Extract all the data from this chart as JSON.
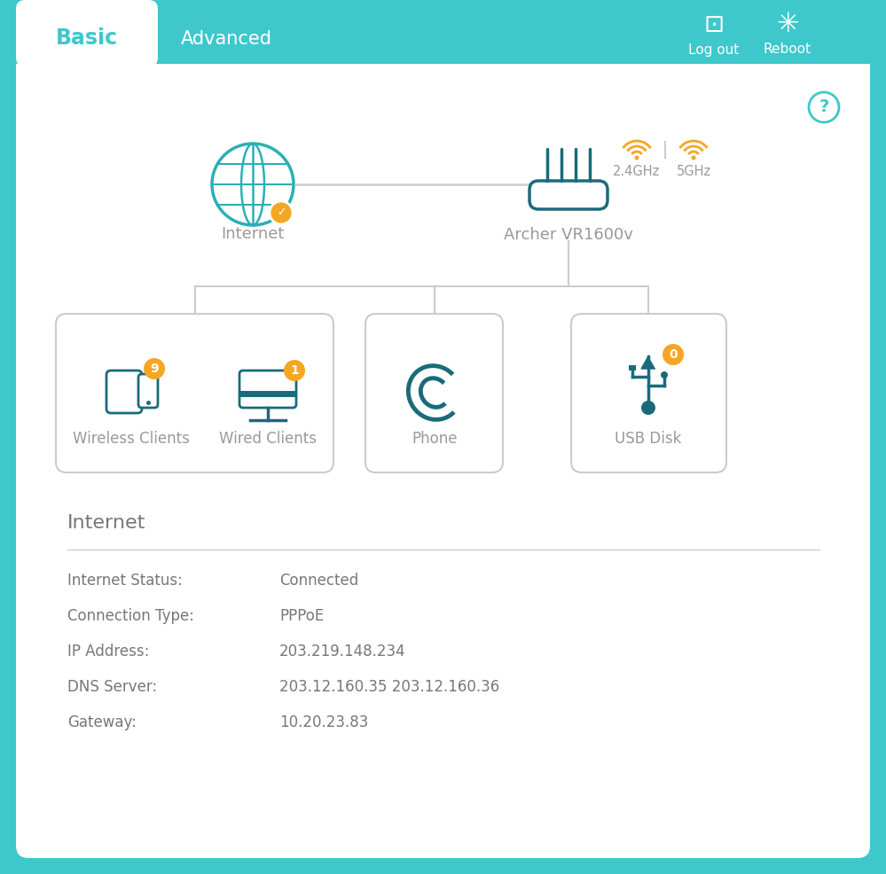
{
  "bg_color": "#3ec8cc",
  "panel_color": "#ffffff",
  "teal": "#2ab0b4",
  "dark_teal": "#1a6b7a",
  "yellow": "#f5a623",
  "gray_text": "#777777",
  "light_gray": "#cccccc",
  "mid_gray": "#999999",
  "tab_active_text": "#3ec8cc",
  "tab_inactive_text": "#ffffff",
  "title": "Basic",
  "tab2": "Advanced",
  "logout_text": "Log out",
  "reboot_text": "Reboot",
  "internet_label": "Internet",
  "router_label": "Archer VR1600v",
  "ghz24": "2.4GHz",
  "ghz5": "5GHz",
  "wireless_label": "Wireless Clients",
  "wired_label": "Wired Clients",
  "phone_label": "Phone",
  "usb_label": "USB Disk",
  "wireless_count": "9",
  "wired_count": "1",
  "usb_count": "0",
  "info_title": "Internet",
  "info_fields": [
    "Internet Status:",
    "Connection Type:",
    "IP Address:",
    "DNS Server:",
    "Gateway:"
  ],
  "info_values": [
    "Connected",
    "PPPoE",
    "203.219.148.234",
    "203.12.160.35 203.12.160.36",
    "10.20.23.83"
  ],
  "figw": 9.99,
  "figh": 9.86,
  "dpi": 100
}
